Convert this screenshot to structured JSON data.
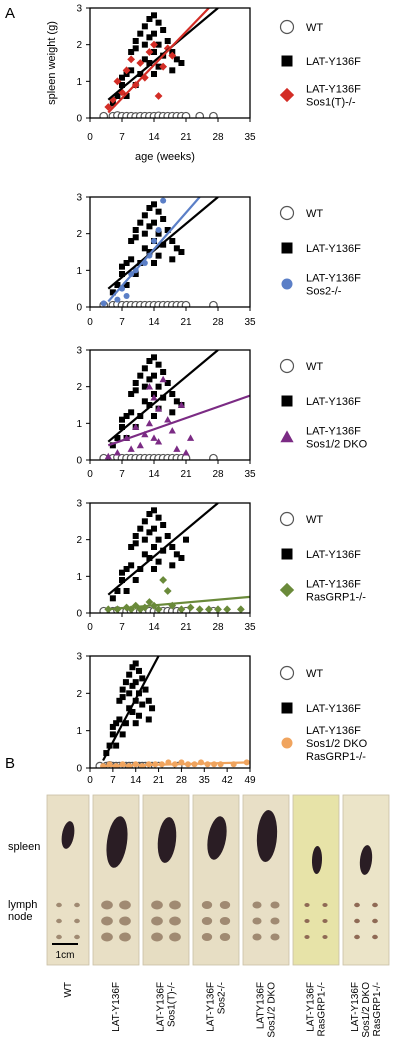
{
  "panel_a_label": "A",
  "panel_b_label": "B",
  "y_axis_label": "spleen weight (g)",
  "x_axis_label": "age (weeks)",
  "chart_data": [
    {
      "type": "scatter",
      "ylim": [
        0,
        3
      ],
      "xlim": [
        0,
        35
      ],
      "yticks": [
        0,
        1,
        2,
        3
      ],
      "xticks": [
        0,
        7,
        14,
        21,
        28,
        35
      ],
      "legend": [
        "WT",
        "LAT-Y136F",
        "LAT-Y136F\nSos1(T)-/-"
      ],
      "series": [
        {
          "name": "WT",
          "marker": "circle-open",
          "color": "#555555",
          "x": [
            3,
            5,
            6,
            7,
            8,
            9,
            10,
            11,
            12,
            13,
            14,
            15,
            16,
            17,
            18,
            19,
            20,
            21,
            24,
            27
          ],
          "y": [
            0.05,
            0.05,
            0.07,
            0.05,
            0.05,
            0.05,
            0.04,
            0.05,
            0.05,
            0.05,
            0.05,
            0.06,
            0.05,
            0.05,
            0.05,
            0.05,
            0.05,
            0.05,
            0.05,
            0.05
          ]
        },
        {
          "name": "LAT-Y136F",
          "marker": "square",
          "color": "#000000",
          "x": [
            5,
            6,
            7,
            7,
            8,
            8,
            9,
            9,
            10,
            10,
            10,
            11,
            11,
            12,
            12,
            12,
            13,
            13,
            13,
            14,
            14,
            14,
            14,
            15,
            15,
            15,
            16,
            16,
            17,
            18,
            18,
            19,
            20
          ],
          "y": [
            0.4,
            0.6,
            0.9,
            1.1,
            0.6,
            1.2,
            1.8,
            1.3,
            2.1,
            1.9,
            0.9,
            2.3,
            1.2,
            2.5,
            2.0,
            1.6,
            2.7,
            2.2,
            1.5,
            2.8,
            2.3,
            1.8,
            1.2,
            2.6,
            2.0,
            1.4,
            2.4,
            1.7,
            2.1,
            1.8,
            1.3,
            1.6,
            1.5
          ]
        },
        {
          "name": "LAT-Y136F Sos1(T)-/-",
          "marker": "diamond",
          "color": "#d32d26",
          "x": [
            4,
            5,
            6,
            7,
            8,
            9,
            10,
            11,
            12,
            13,
            14,
            15,
            16,
            17,
            18
          ],
          "y": [
            0.3,
            0.5,
            1.0,
            0.7,
            1.3,
            1.6,
            0.9,
            1.5,
            1.1,
            1.8,
            2.0,
            0.6,
            1.4,
            1.9,
            1.7
          ]
        }
      ],
      "trendlines": [
        {
          "color": "#000000",
          "x": [
            4,
            28
          ],
          "y": [
            0.5,
            3.0
          ]
        },
        {
          "color": "#d32d26",
          "x": [
            4,
            26
          ],
          "y": [
            0.15,
            3.0
          ]
        }
      ]
    },
    {
      "type": "scatter",
      "ylim": [
        0,
        3
      ],
      "xlim": [
        0,
        35
      ],
      "yticks": [
        0,
        1,
        2,
        3
      ],
      "xticks": [
        0,
        7,
        14,
        21,
        28,
        35
      ],
      "legend": [
        "WT",
        "LAT-Y136F",
        "LAT-Y136F\nSos2-/-"
      ],
      "series": [
        {
          "name": "WT",
          "marker": "circle-open",
          "color": "#555555",
          "x": [
            3,
            5,
            6,
            7,
            8,
            9,
            10,
            11,
            12,
            13,
            14,
            15,
            16,
            17,
            18,
            19,
            20,
            21,
            27
          ],
          "y": [
            0.05,
            0.05,
            0.07,
            0.05,
            0.05,
            0.05,
            0.05,
            0.05,
            0.05,
            0.05,
            0.05,
            0.05,
            0.05,
            0.05,
            0.05,
            0.05,
            0.05,
            0.05,
            0.05
          ]
        },
        {
          "name": "LAT-Y136F",
          "marker": "square",
          "color": "#000000",
          "x": [
            5,
            6,
            7,
            7,
            8,
            8,
            9,
            9,
            10,
            10,
            10,
            11,
            11,
            12,
            12,
            12,
            13,
            13,
            13,
            14,
            14,
            14,
            14,
            15,
            15,
            15,
            16,
            16,
            17,
            18,
            18,
            19,
            20
          ],
          "y": [
            0.4,
            0.6,
            0.9,
            1.1,
            0.6,
            1.2,
            1.8,
            1.3,
            2.1,
            1.9,
            0.9,
            2.3,
            1.2,
            2.5,
            2.0,
            1.6,
            2.7,
            2.2,
            1.5,
            2.8,
            2.3,
            1.8,
            1.2,
            2.6,
            2.0,
            1.4,
            2.4,
            1.7,
            2.1,
            1.8,
            1.3,
            1.6,
            1.5
          ]
        },
        {
          "name": "LAT-Y136F Sos2-/-",
          "marker": "circle",
          "color": "#5b7fc7",
          "x": [
            3,
            6,
            7,
            8,
            9,
            10,
            12,
            13,
            14,
            15,
            16
          ],
          "y": [
            0.1,
            0.2,
            0.5,
            0.3,
            0.9,
            1.0,
            1.2,
            1.4,
            1.8,
            2.1,
            2.9
          ]
        }
      ],
      "trendlines": [
        {
          "color": "#000000",
          "x": [
            4,
            28
          ],
          "y": [
            0.5,
            3.0
          ]
        },
        {
          "color": "#5b7fc7",
          "x": [
            4,
            24
          ],
          "y": [
            0.15,
            3.0
          ]
        }
      ]
    },
    {
      "type": "scatter",
      "ylim": [
        0,
        3
      ],
      "xlim": [
        0,
        35
      ],
      "yticks": [
        0,
        1,
        2,
        3
      ],
      "xticks": [
        0,
        7,
        14,
        21,
        28,
        35
      ],
      "legend": [
        "WT",
        "LAT-Y136F",
        "LAT-Y136F\nSos1/2 DKO"
      ],
      "series": [
        {
          "name": "WT",
          "marker": "circle-open",
          "color": "#555555",
          "x": [
            3,
            5,
            6,
            7,
            8,
            9,
            10,
            11,
            12,
            13,
            14,
            15,
            16,
            17,
            18,
            19,
            20,
            21,
            27
          ],
          "y": [
            0.05,
            0.05,
            0.07,
            0.05,
            0.05,
            0.05,
            0.05,
            0.05,
            0.05,
            0.05,
            0.05,
            0.05,
            0.05,
            0.05,
            0.05,
            0.05,
            0.05,
            0.05,
            0.05
          ]
        },
        {
          "name": "LAT-Y136F",
          "marker": "square",
          "color": "#000000",
          "x": [
            5,
            6,
            7,
            7,
            8,
            8,
            9,
            9,
            10,
            10,
            10,
            11,
            11,
            12,
            12,
            12,
            13,
            13,
            13,
            14,
            14,
            14,
            14,
            15,
            15,
            15,
            16,
            16,
            17,
            18,
            18,
            19,
            20
          ],
          "y": [
            0.4,
            0.6,
            0.9,
            1.1,
            0.6,
            1.2,
            1.8,
            1.3,
            2.1,
            1.9,
            0.9,
            2.3,
            1.2,
            2.5,
            2.0,
            1.6,
            2.7,
            2.2,
            1.5,
            2.8,
            2.3,
            1.8,
            1.2,
            2.6,
            2.0,
            1.4,
            2.4,
            1.7,
            2.1,
            1.8,
            1.3,
            1.6,
            1.5
          ]
        },
        {
          "name": "LAT-Y136F Sos1/2 DKO",
          "marker": "triangle",
          "color": "#7b2b84",
          "x": [
            4,
            6,
            8,
            9,
            10,
            11,
            12,
            13,
            13,
            14,
            14,
            15,
            15,
            16,
            17,
            18,
            19,
            20,
            21,
            22
          ],
          "y": [
            0.1,
            0.2,
            0.6,
            0.3,
            0.9,
            0.4,
            0.7,
            1.0,
            2.0,
            0.6,
            1.7,
            1.4,
            0.5,
            2.2,
            1.1,
            0.8,
            0.3,
            1.5,
            0.2,
            0.6
          ]
        }
      ],
      "trendlines": [
        {
          "color": "#000000",
          "x": [
            4,
            28
          ],
          "y": [
            0.5,
            3.0
          ]
        },
        {
          "color": "#7b2b84",
          "x": [
            4,
            36
          ],
          "y": [
            0.4,
            1.8
          ]
        }
      ]
    },
    {
      "type": "scatter",
      "ylim": [
        0,
        3
      ],
      "xlim": [
        0,
        35
      ],
      "yticks": [
        0,
        1,
        2,
        3
      ],
      "xticks": [
        0,
        7,
        14,
        21,
        28,
        35
      ],
      "legend": [
        "WT",
        "LAT-Y136F",
        "LAT-Y136F\nRasGRP1-/-"
      ],
      "series": [
        {
          "name": "WT",
          "marker": "circle-open",
          "color": "#555555",
          "x": [
            3,
            5,
            6,
            7,
            8,
            9,
            10,
            11,
            12,
            13,
            14,
            15,
            16,
            17,
            18,
            19,
            20,
            21,
            27
          ],
          "y": [
            0.05,
            0.05,
            0.07,
            0.05,
            0.05,
            0.05,
            0.05,
            0.05,
            0.05,
            0.05,
            0.05,
            0.05,
            0.05,
            0.05,
            0.05,
            0.05,
            0.05,
            0.05,
            0.05
          ]
        },
        {
          "name": "LAT-Y136F",
          "marker": "square",
          "color": "#000000",
          "x": [
            5,
            6,
            7,
            7,
            8,
            8,
            9,
            9,
            10,
            10,
            10,
            11,
            11,
            12,
            12,
            12,
            13,
            13,
            13,
            14,
            14,
            14,
            14,
            15,
            15,
            15,
            16,
            16,
            17,
            18,
            18,
            19,
            20,
            21
          ],
          "y": [
            0.4,
            0.6,
            0.9,
            1.1,
            0.6,
            1.2,
            1.8,
            1.3,
            2.1,
            1.9,
            0.9,
            2.3,
            1.2,
            2.5,
            2.0,
            1.6,
            2.7,
            2.2,
            1.5,
            2.8,
            2.3,
            1.8,
            1.2,
            2.6,
            2.0,
            1.4,
            2.4,
            1.7,
            2.1,
            1.8,
            1.3,
            1.6,
            1.5,
            2.0
          ]
        },
        {
          "name": "LAT-Y136F RasGRP1-/-",
          "marker": "diamond",
          "color": "#6a8a3a",
          "x": [
            4,
            6,
            8,
            9,
            10,
            11,
            12,
            13,
            14,
            15,
            16,
            17,
            18,
            20,
            22,
            24,
            26,
            28,
            30,
            33
          ],
          "y": [
            0.1,
            0.1,
            0.15,
            0.1,
            0.2,
            0.1,
            0.15,
            0.3,
            0.2,
            0.1,
            0.9,
            0.6,
            0.2,
            0.1,
            0.15,
            0.1,
            0.1,
            0.1,
            0.1,
            0.1
          ]
        }
      ],
      "trendlines": [
        {
          "color": "#000000",
          "x": [
            4,
            28
          ],
          "y": [
            0.5,
            3.0
          ]
        },
        {
          "color": "#6a8a3a",
          "x": [
            4,
            36
          ],
          "y": [
            0.1,
            0.45
          ]
        }
      ]
    },
    {
      "type": "scatter",
      "ylim": [
        0,
        3
      ],
      "xlim": [
        0,
        49
      ],
      "yticks": [
        0,
        1,
        2,
        3
      ],
      "xticks": [
        0,
        7,
        14,
        21,
        28,
        35,
        42,
        49
      ],
      "legend": [
        "WT",
        "LAT-Y136F",
        "LAT-Y136F\nSos1/2 DKO\nRasGRP1-/-"
      ],
      "series": [
        {
          "name": "WT",
          "marker": "circle-open",
          "color": "#555555",
          "x": [
            3,
            5,
            6,
            7,
            8,
            9,
            10,
            11,
            12,
            13,
            14,
            15,
            16,
            17,
            18,
            19,
            20,
            21,
            27
          ],
          "y": [
            0.05,
            0.05,
            0.07,
            0.05,
            0.05,
            0.05,
            0.05,
            0.05,
            0.05,
            0.05,
            0.05,
            0.05,
            0.05,
            0.05,
            0.05,
            0.05,
            0.05,
            0.05,
            0.05
          ]
        },
        {
          "name": "LAT-Y136F",
          "marker": "square",
          "color": "#000000",
          "x": [
            5,
            6,
            7,
            7,
            8,
            8,
            9,
            9,
            10,
            10,
            10,
            11,
            11,
            12,
            12,
            12,
            13,
            13,
            13,
            14,
            14,
            14,
            14,
            15,
            15,
            15,
            16,
            16,
            17,
            18,
            18,
            19
          ],
          "y": [
            0.4,
            0.6,
            0.9,
            1.1,
            0.6,
            1.2,
            1.8,
            1.3,
            2.1,
            1.9,
            0.9,
            2.3,
            1.2,
            2.5,
            2.0,
            1.6,
            2.7,
            2.2,
            1.5,
            2.8,
            2.3,
            1.8,
            1.2,
            2.6,
            2.0,
            1.4,
            2.4,
            1.7,
            2.1,
            1.8,
            1.3,
            1.6
          ]
        },
        {
          "name": "LAT-Y136F Sos1/2 DKO RasGRP1-/-",
          "marker": "circle",
          "color": "#f0a45e",
          "x": [
            4,
            6,
            8,
            10,
            12,
            14,
            16,
            18,
            20,
            22,
            24,
            26,
            28,
            30,
            32,
            34,
            36,
            38,
            40,
            44,
            48
          ],
          "y": [
            0.05,
            0.1,
            0.05,
            0.1,
            0.05,
            0.1,
            0.05,
            0.1,
            0.1,
            0.1,
            0.15,
            0.1,
            0.15,
            0.1,
            0.1,
            0.15,
            0.1,
            0.1,
            0.1,
            0.1,
            0.15
          ]
        }
      ],
      "trendlines": [
        {
          "color": "#000000",
          "x": [
            4,
            21
          ],
          "y": [
            0.2,
            3.0
          ]
        },
        {
          "color": "#f0a45e",
          "x": [
            4,
            49
          ],
          "y": [
            0.05,
            0.15
          ]
        }
      ]
    }
  ],
  "panel_b": {
    "row_labels": [
      "spleen",
      "lymph\nnode"
    ],
    "scale_label": "1cm",
    "genotypes": [
      "WT",
      "LAT-Y136F",
      "LAT-Y136F\nSos1(T)-/-",
      "LAT-Y136F\nSos2-/-",
      "LATY136F\nSos1/2 DKO",
      "LAT-Y136F\nRasGRP1-/-",
      "LAT-Y136F\nSos1/2 DKO\nRasGRP1-/-"
    ]
  }
}
